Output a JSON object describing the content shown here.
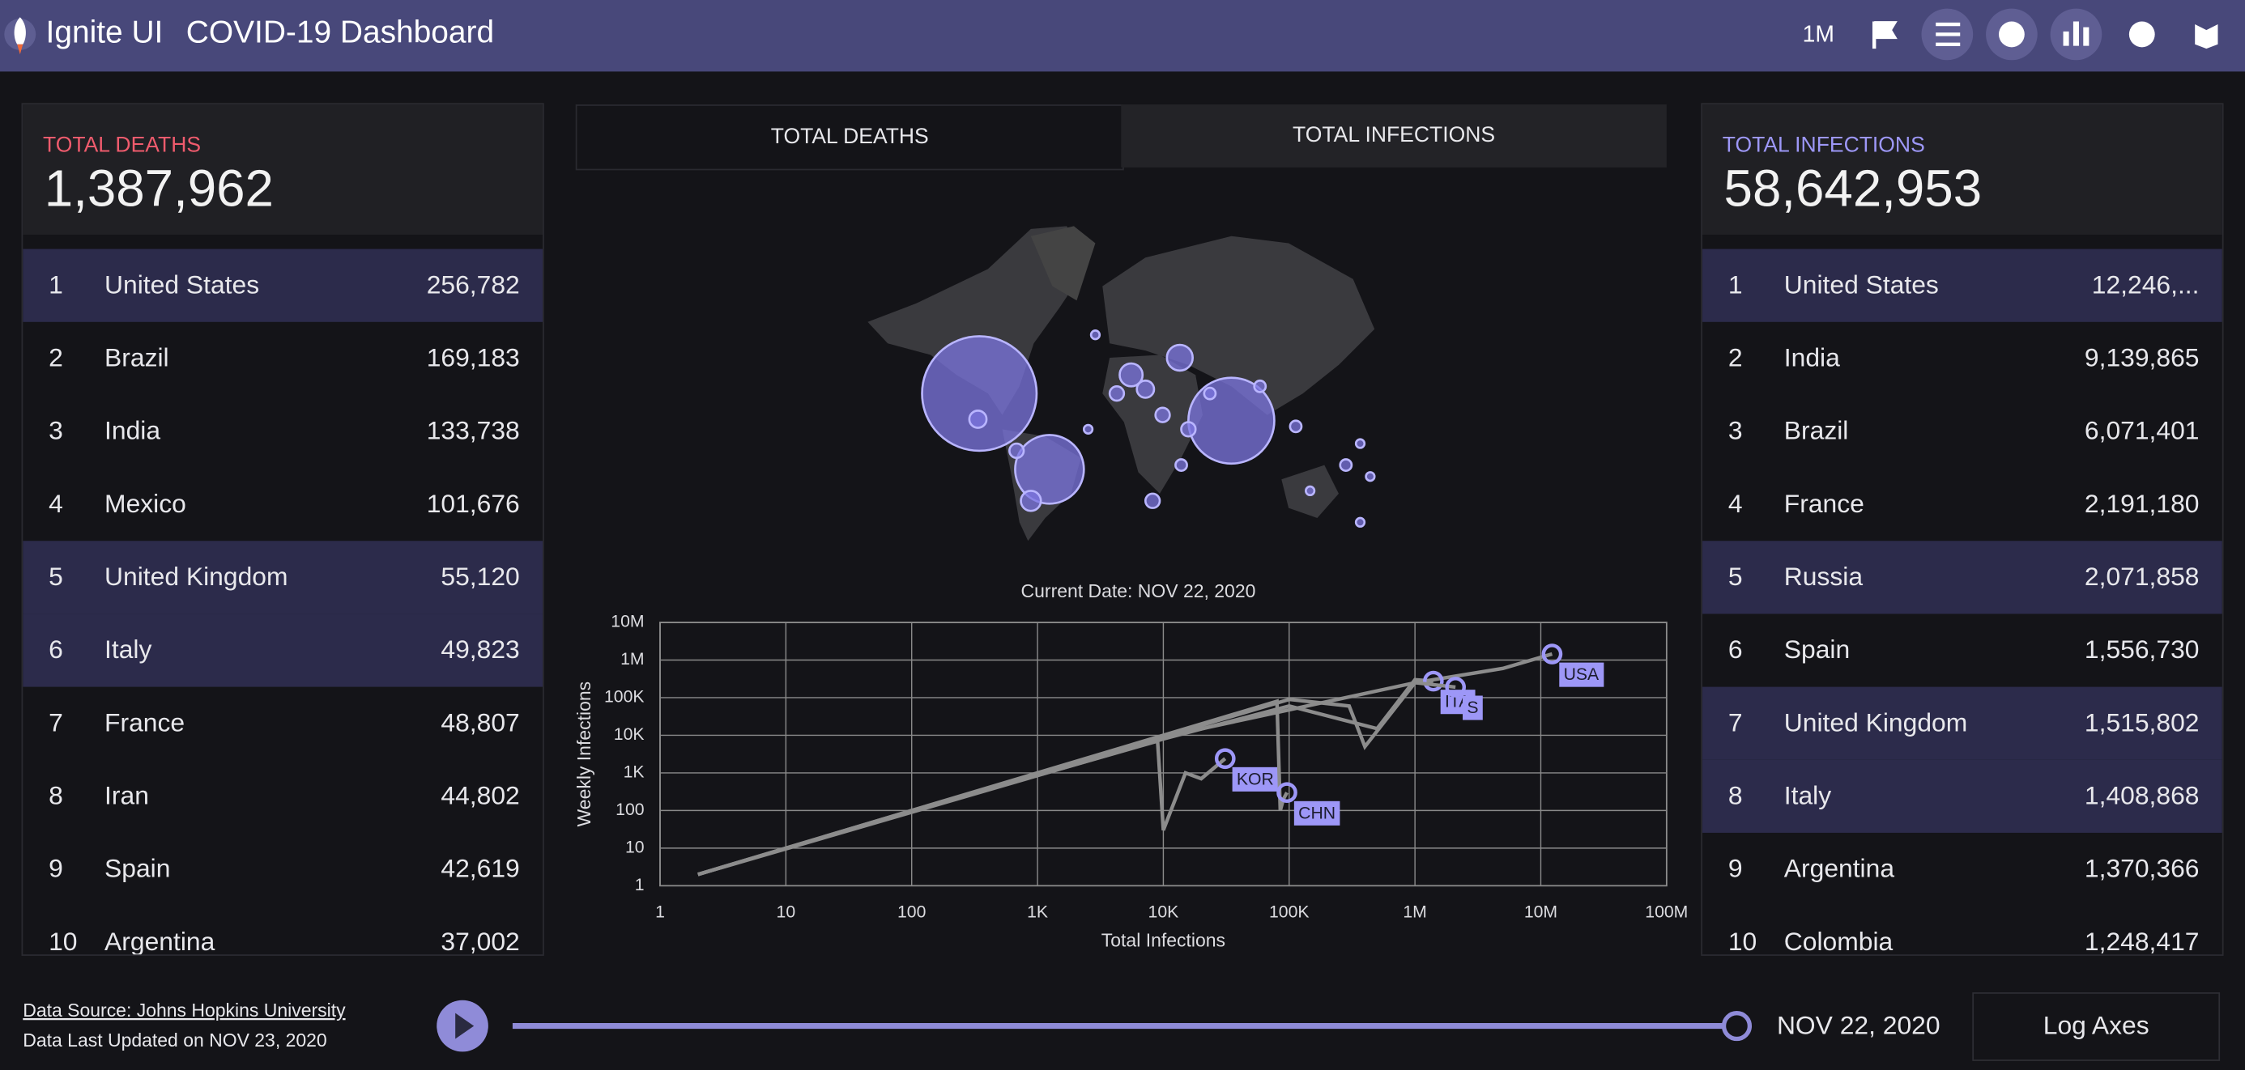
{
  "header": {
    "brand": "Ignite UI",
    "title": "COVID-19 Dashboard",
    "scale_button": "1M"
  },
  "left_panel": {
    "label": "TOTAL DEATHS",
    "total": "1,387,962",
    "rows": [
      {
        "rank": 1,
        "country": "United States",
        "value": "256,782"
      },
      {
        "rank": 2,
        "country": "Brazil",
        "value": "169,183"
      },
      {
        "rank": 3,
        "country": "India",
        "value": "133,738"
      },
      {
        "rank": 4,
        "country": "Mexico",
        "value": "101,676"
      },
      {
        "rank": 5,
        "country": "United Kingdom",
        "value": "55,120"
      },
      {
        "rank": 6,
        "country": "Italy",
        "value": "49,823"
      },
      {
        "rank": 7,
        "country": "France",
        "value": "48,807"
      },
      {
        "rank": 8,
        "country": "Iran",
        "value": "44,802"
      },
      {
        "rank": 9,
        "country": "Spain",
        "value": "42,619"
      },
      {
        "rank": 10,
        "country": "Argentina",
        "value": "37,002"
      }
    ]
  },
  "right_panel": {
    "label": "TOTAL INFECTIONS",
    "total": "58,642,953",
    "rows": [
      {
        "rank": 1,
        "country": "United States",
        "value": "12,246,..."
      },
      {
        "rank": 2,
        "country": "India",
        "value": "9,139,865"
      },
      {
        "rank": 3,
        "country": "Brazil",
        "value": "6,071,401"
      },
      {
        "rank": 4,
        "country": "France",
        "value": "2,191,180"
      },
      {
        "rank": 5,
        "country": "Russia",
        "value": "2,071,858"
      },
      {
        "rank": 6,
        "country": "Spain",
        "value": "1,556,730"
      },
      {
        "rank": 7,
        "country": "United Kingdom",
        "value": "1,515,802"
      },
      {
        "rank": 8,
        "country": "Italy",
        "value": "1,408,868"
      },
      {
        "rank": 9,
        "country": "Argentina",
        "value": "1,370,366"
      },
      {
        "rank": 10,
        "country": "Colombia",
        "value": "1,248,417"
      }
    ]
  },
  "tabs": [
    "TOTAL DEATHS",
    "TOTAL INFECTIONS"
  ],
  "chart_data": {
    "type": "line",
    "title": "Current Date: NOV 22, 2020",
    "x_label": "Total Infections",
    "y_label": "Weekly Infections",
    "log_scale": true,
    "grid": true,
    "label_color": "#9d97f7",
    "xlim": [
      1,
      100000000
    ],
    "xticks": [
      1,
      10,
      100,
      {
        "value": 1000,
        "label": "1K"
      },
      {
        "value": 10000,
        "label": "10K"
      },
      {
        "value": 100000,
        "label": "100K"
      },
      {
        "value": 1000000,
        "label": "1M"
      },
      {
        "value": 10000000,
        "label": "10M"
      },
      {
        "value": 100000000,
        "label": "100M"
      }
    ],
    "ylim": [
      1,
      10000000
    ],
    "yticks": [
      1,
      10,
      100,
      {
        "value": 1000,
        "label": "1K"
      },
      {
        "value": 10000,
        "label": "10K"
      },
      {
        "value": 100000,
        "label": "100K"
      },
      {
        "value": 1000000,
        "label": "1M"
      },
      {
        "value": 10000000,
        "label": "10M"
      }
    ],
    "series": [
      {
        "name": "USA",
        "color": "#8c8c8c",
        "x": [
          2,
          100,
          10000,
          1000000,
          5000000,
          12300000
        ],
        "values": [
          2,
          100,
          9000,
          250000,
          600000,
          1450000
        ]
      },
      {
        "name": "ITA",
        "color": "#8c8c8c",
        "x": [
          2,
          100,
          10000,
          100000,
          500000,
          1000000,
          1400000
        ],
        "values": [
          2,
          90,
          8000,
          60000,
          15000,
          300000,
          275000
        ]
      },
      {
        "name": "S",
        "color": "#8c8c8c",
        "x": [
          2,
          100000,
          300000,
          400000,
          1000000,
          2100000
        ],
        "values": [
          2,
          90000,
          60000,
          5000,
          250000,
          191000
        ]
      },
      {
        "name": "KOR",
        "color": "#8c8c8c",
        "x": [
          30,
          9000,
          10000,
          15000,
          20000,
          31000
        ],
        "values": [
          30,
          7000,
          30,
          1000,
          700,
          2400
        ]
      },
      {
        "name": "CHN",
        "color": "#8c8c8c",
        "x": [
          2,
          1000,
          80000,
          85000,
          90000,
          96000
        ],
        "values": [
          2,
          1000,
          80000,
          100,
          200,
          300
        ]
      }
    ]
  },
  "footer": {
    "source": "Data Source: Johns Hopkins University",
    "updated": "Data Last Updated on NOV 23, 2020",
    "date": "NOV 22, 2020",
    "log_button": "Log Axes"
  }
}
